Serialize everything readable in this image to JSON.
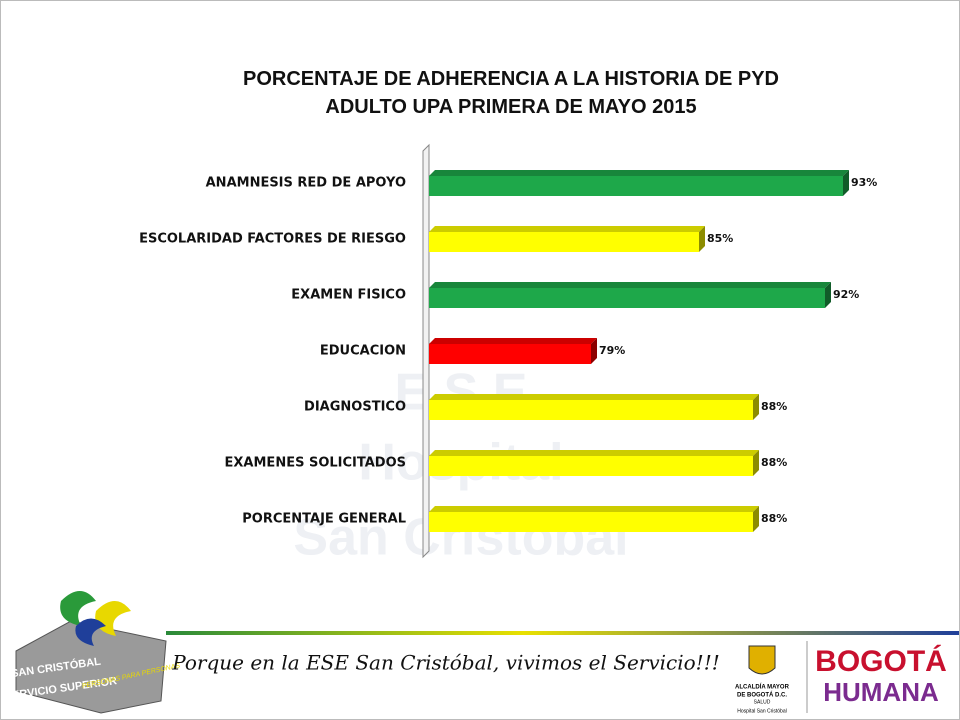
{
  "chart_data": {
    "type": "bar",
    "orientation": "horizontal",
    "title": "PORCENTAJE DE ADHERENCIA A LA HISTORIA DE PYD ADULTO UPA PRIMERA DE MAYO 2015",
    "categories": [
      "ANAMNESIS RED DE APOYO",
      "ESCOLARIDAD FACTORES DE RIESGO",
      "EXAMEN FISICO",
      "EDUCACION",
      "DIAGNOSTICO",
      "EXAMENES SOLICITADOS",
      "PORCENTAJE GENERAL"
    ],
    "values": [
      93,
      85,
      92,
      79,
      88,
      88,
      88
    ],
    "value_labels": [
      "93%",
      "85%",
      "92%",
      "79%",
      "88%",
      "88%",
      "88%"
    ],
    "colors": [
      "#1ea84a",
      "#ffff00",
      "#1ea84a",
      "#ff0000",
      "#ffff00",
      "#ffff00",
      "#ffff00"
    ],
    "xlim": [
      70,
      95
    ]
  },
  "watermark": [
    "E.S.E",
    "Hospital",
    "San Cristobal"
  ],
  "footer": {
    "slogan": "Porque en la ESE San Cristóbal, vivimos el Servicio!!!",
    "logo_left": [
      "SAN CRISTÓBAL",
      "SERVICIO SUPERIOR",
      "PERSONAS PARA PERSONAS"
    ],
    "logo_mid": [
      "ALCALDÍA MAYOR",
      "DE BOGOTÁ D.C.",
      "SALUD",
      "Hospital San Cristóbal"
    ],
    "logo_right": [
      "BOGOTÁ",
      "HUMANA"
    ]
  }
}
